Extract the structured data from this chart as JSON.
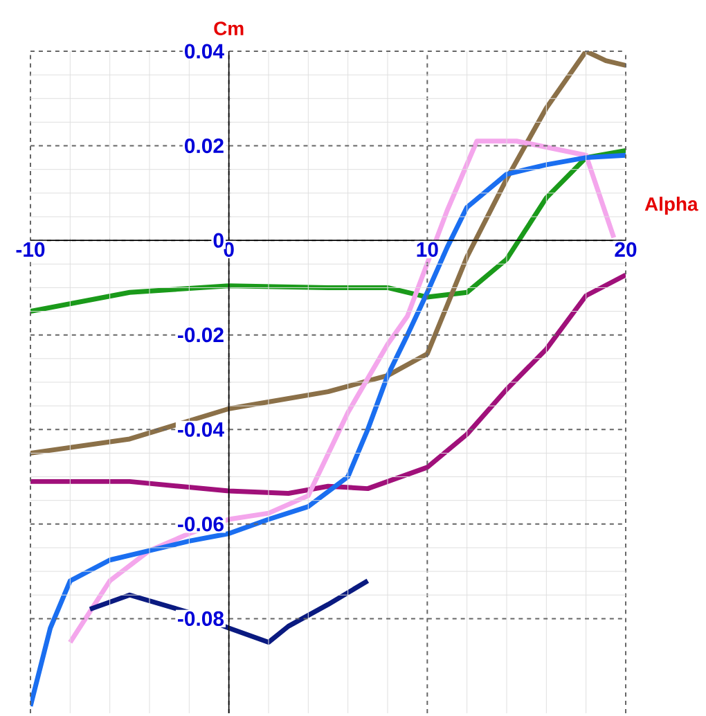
{
  "chart_data": {
    "type": "line",
    "xlabel": "Alpha",
    "ylabel": "Cm",
    "xlim": [
      -10,
      20
    ],
    "ylim": [
      -0.1,
      0.04
    ],
    "xticks": [
      -10,
      0,
      10,
      20
    ],
    "yticks": [
      -0.08,
      -0.06,
      -0.04,
      -0.02,
      0,
      0.02,
      0.04
    ],
    "grid": true,
    "line_style": "solid",
    "series": [
      {
        "color": "#1a9a1a",
        "x": [
          -10,
          -5,
          0,
          5,
          8,
          10,
          12,
          14,
          16,
          18,
          20
        ],
        "values": [
          -0.015,
          -0.011,
          -0.0096,
          -0.01,
          -0.01,
          -0.012,
          -0.011,
          -0.004,
          0.009,
          0.0175,
          0.019
        ]
      },
      {
        "color": "#8b7048",
        "x": [
          -10,
          -5,
          0,
          5,
          8,
          10,
          12,
          14,
          16,
          18,
          19,
          20
        ],
        "values": [
          -0.045,
          -0.042,
          -0.0356,
          -0.032,
          -0.0286,
          -0.024,
          -0.0035,
          0.013,
          0.028,
          0.04,
          0.038,
          0.037
        ]
      },
      {
        "color": "#a0107a",
        "x": [
          -10,
          -5,
          0,
          3,
          5,
          7,
          10,
          12,
          14,
          16,
          18,
          20
        ],
        "values": [
          -0.051,
          -0.051,
          -0.053,
          -0.0535,
          -0.052,
          -0.0525,
          -0.048,
          -0.041,
          -0.0315,
          -0.023,
          -0.0117,
          -0.0073
        ]
      },
      {
        "color": "#f4a6ec",
        "x": [
          -8,
          -6,
          -4,
          -2,
          0,
          2,
          4,
          6,
          8,
          9,
          11,
          12.5,
          14.5,
          18,
          19.4
        ],
        "values": [
          -0.085,
          -0.072,
          -0.0656,
          -0.062,
          -0.059,
          -0.0577,
          -0.054,
          -0.0364,
          -0.022,
          -0.016,
          0.0063,
          0.021,
          0.021,
          0.018,
          0.0006
        ]
      },
      {
        "color": "#1a6ef0",
        "x": [
          -10,
          -9,
          -8,
          -6,
          -4,
          -2,
          0,
          2,
          4,
          6,
          7,
          8,
          9,
          10,
          11,
          12,
          14,
          16,
          18,
          20
        ],
        "values": [
          -0.0985,
          -0.082,
          -0.072,
          -0.0676,
          -0.0656,
          -0.0636,
          -0.062,
          -0.059,
          -0.0563,
          -0.05,
          -0.04,
          -0.0286,
          -0.02,
          -0.011,
          -0.0015,
          0.007,
          0.014,
          0.016,
          0.0175,
          0.018
        ]
      },
      {
        "color": "#0a1a80",
        "x": [
          -7,
          -5,
          -2,
          0,
          2,
          3,
          5,
          7
        ],
        "values": [
          -0.078,
          -0.075,
          -0.0787,
          -0.082,
          -0.085,
          -0.0816,
          -0.077,
          -0.072
        ]
      }
    ]
  }
}
